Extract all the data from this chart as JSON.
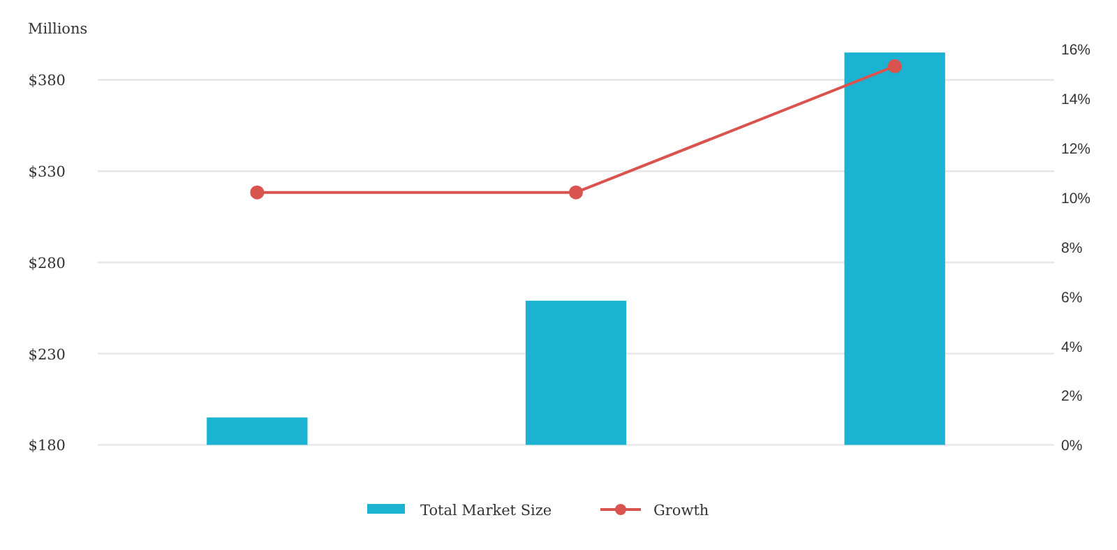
{
  "chart_data": {
    "type": "bar",
    "categories": [
      null,
      null,
      null
    ],
    "ylabel": "Millions",
    "ylim": [
      180,
      397
    ],
    "yticks": [
      {
        "value": 180,
        "label": "$180"
      },
      {
        "value": 230,
        "label": "$230"
      },
      {
        "value": 280,
        "label": "$280"
      },
      {
        "value": 330,
        "label": "$330"
      },
      {
        "value": 380,
        "label": "$380"
      }
    ],
    "y2lim": [
      0,
      16
    ],
    "y2ticks": [
      {
        "value": 0,
        "label": "0%"
      },
      {
        "value": 2,
        "label": "2%"
      },
      {
        "value": 4,
        "label": "4%"
      },
      {
        "value": 6,
        "label": "6%"
      },
      {
        "value": 8,
        "label": "8%"
      },
      {
        "value": 10,
        "label": "10%"
      },
      {
        "value": 12,
        "label": "12%"
      },
      {
        "value": 14,
        "label": "14%"
      },
      {
        "value": 16,
        "label": "16%"
      }
    ],
    "grid": "y",
    "legend": "bottom",
    "series": [
      {
        "name": "Total Market Size",
        "color": "#1bb3d1",
        "values": [
          195,
          259,
          395
        ]
      },
      {
        "name": "Growth",
        "type": "line",
        "axis": "y2",
        "color": "#d9534f",
        "marker": "circle",
        "values": [
          10.2,
          10.2,
          15.3
        ]
      }
    ]
  }
}
